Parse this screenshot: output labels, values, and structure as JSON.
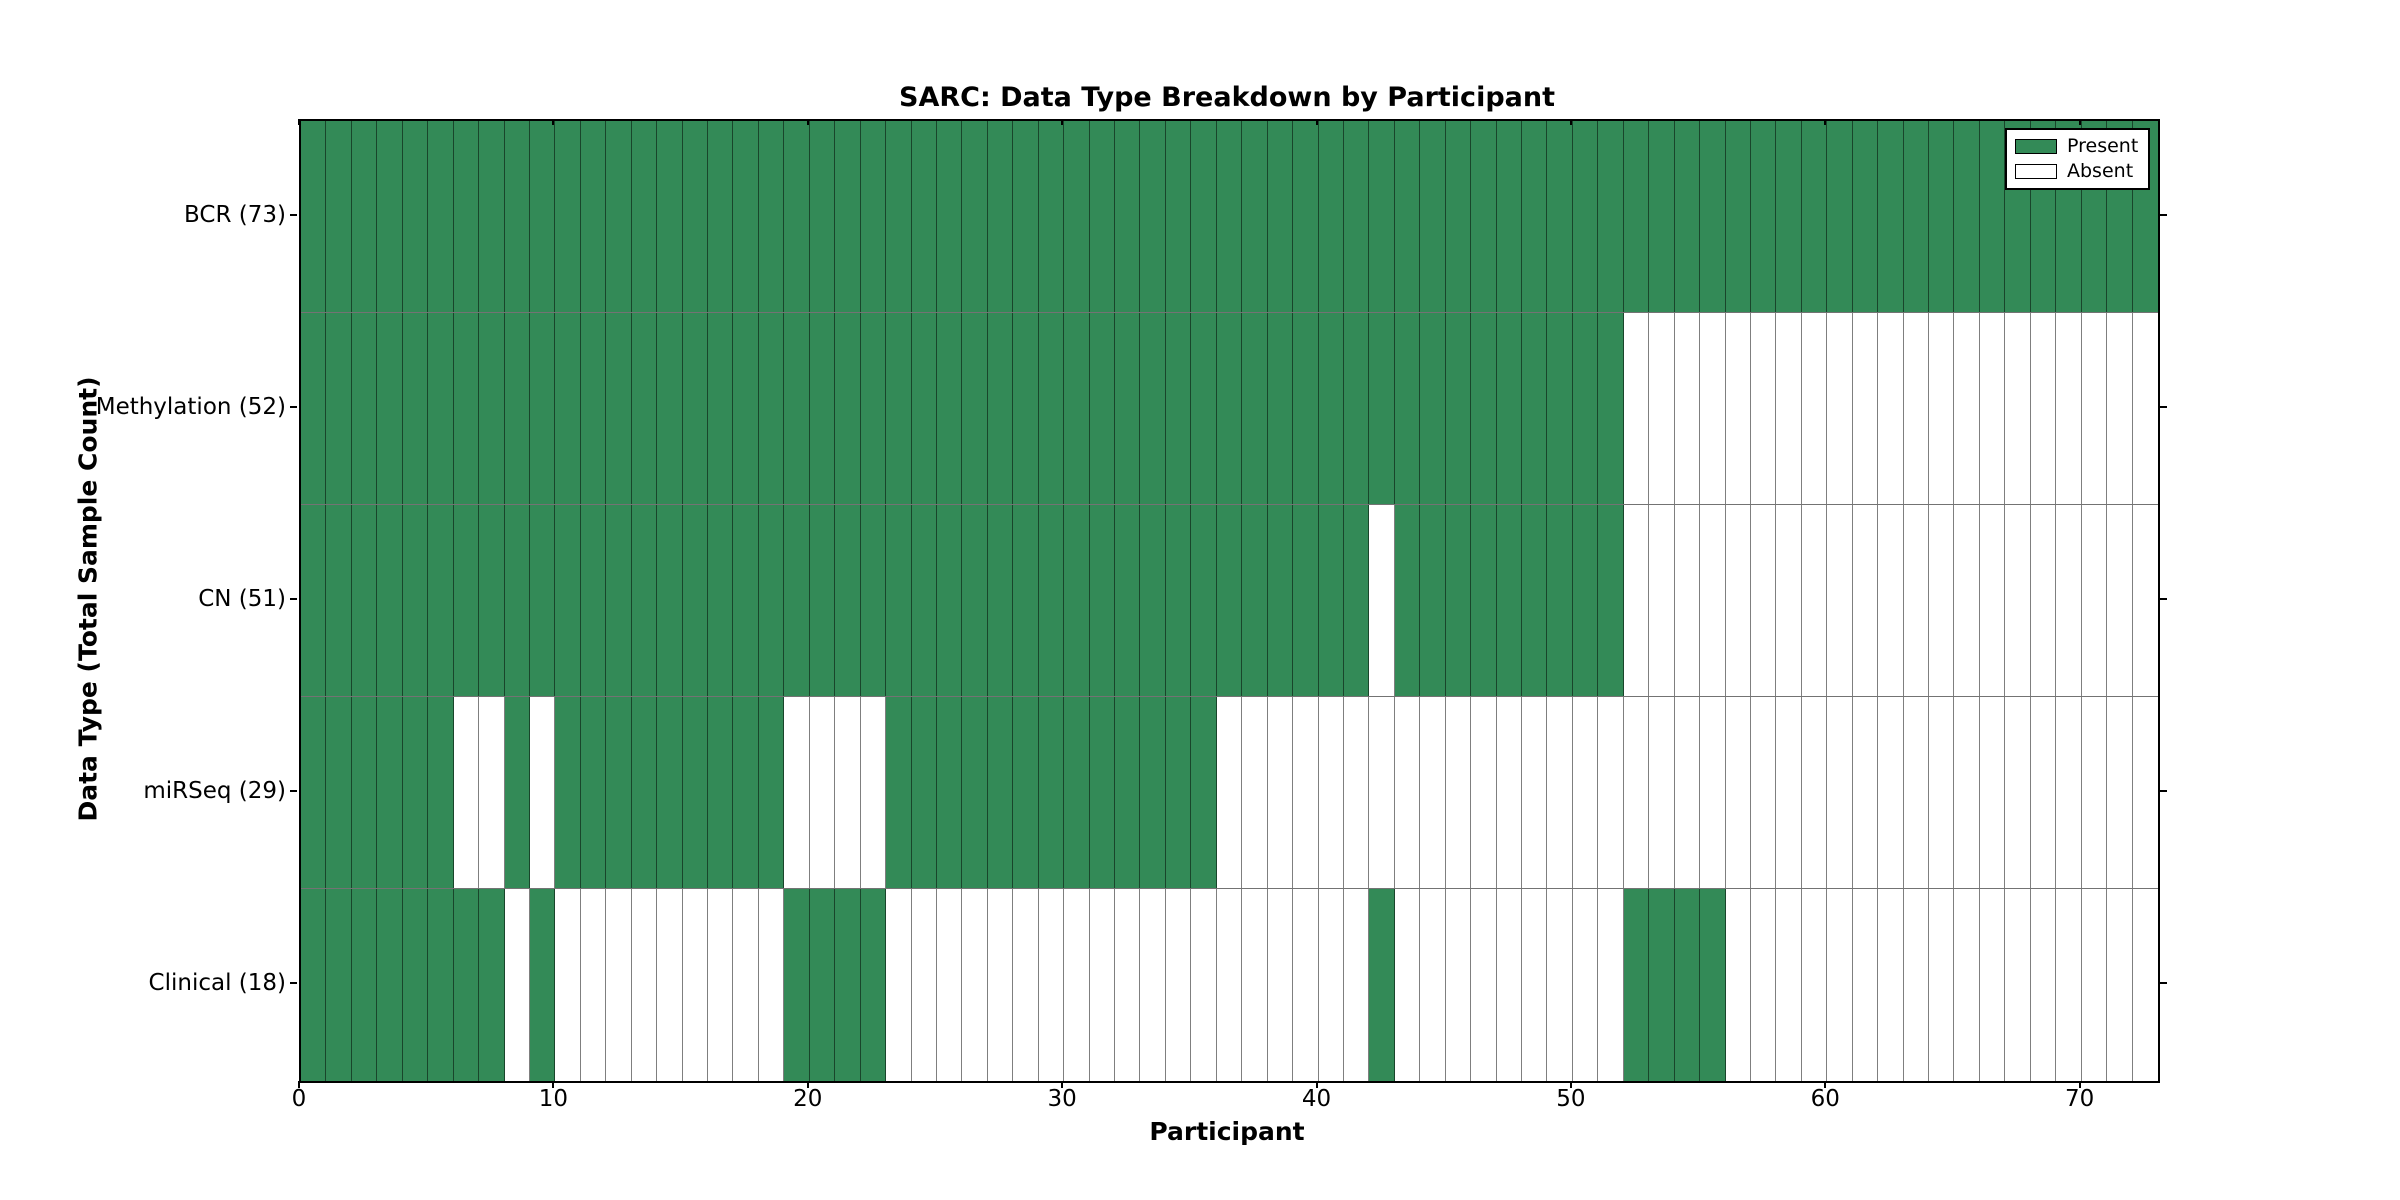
{
  "figure": {
    "title": "SARC: Data Type Breakdown by Participant",
    "xlabel": "Participant",
    "ylabel": "Data Type (Total Sample Count)"
  },
  "legend": {
    "items": [
      {
        "label": "Present",
        "color": "#338a57"
      },
      {
        "label": "Absent",
        "color": "#ffffff"
      }
    ]
  },
  "chart_data": {
    "type": "heatmap",
    "title": "SARC: Data Type Breakdown by Participant",
    "xlabel": "Participant",
    "ylabel": "Data Type (Total Sample Count)",
    "x_ticks": [
      0,
      10,
      20,
      30,
      40,
      50,
      60,
      70
    ],
    "x_range": [
      0,
      73
    ],
    "n_participants": 73,
    "present_color": "#338a57",
    "absent_color": "#ffffff",
    "grid": "cell-borders",
    "legend_position": "upper-right-inside",
    "rows": [
      {
        "label": "BCR (73)",
        "total": 73,
        "present_ranges": [
          [
            0,
            72
          ]
        ]
      },
      {
        "label": "Methylation (52)",
        "total": 52,
        "present_ranges": [
          [
            0,
            51
          ]
        ]
      },
      {
        "label": "CN (51)",
        "total": 51,
        "present_ranges": [
          [
            0,
            41
          ],
          [
            43,
            51
          ]
        ]
      },
      {
        "label": "miRSeq (29)",
        "total": 29,
        "present_ranges": [
          [
            0,
            5
          ],
          [
            8,
            8
          ],
          [
            10,
            18
          ],
          [
            23,
            35
          ]
        ]
      },
      {
        "label": "Clinical (18)",
        "total": 18,
        "present_ranges": [
          [
            0,
            7
          ],
          [
            9,
            9
          ],
          [
            19,
            22
          ],
          [
            42,
            42
          ],
          [
            52,
            55
          ]
        ]
      }
    ]
  }
}
